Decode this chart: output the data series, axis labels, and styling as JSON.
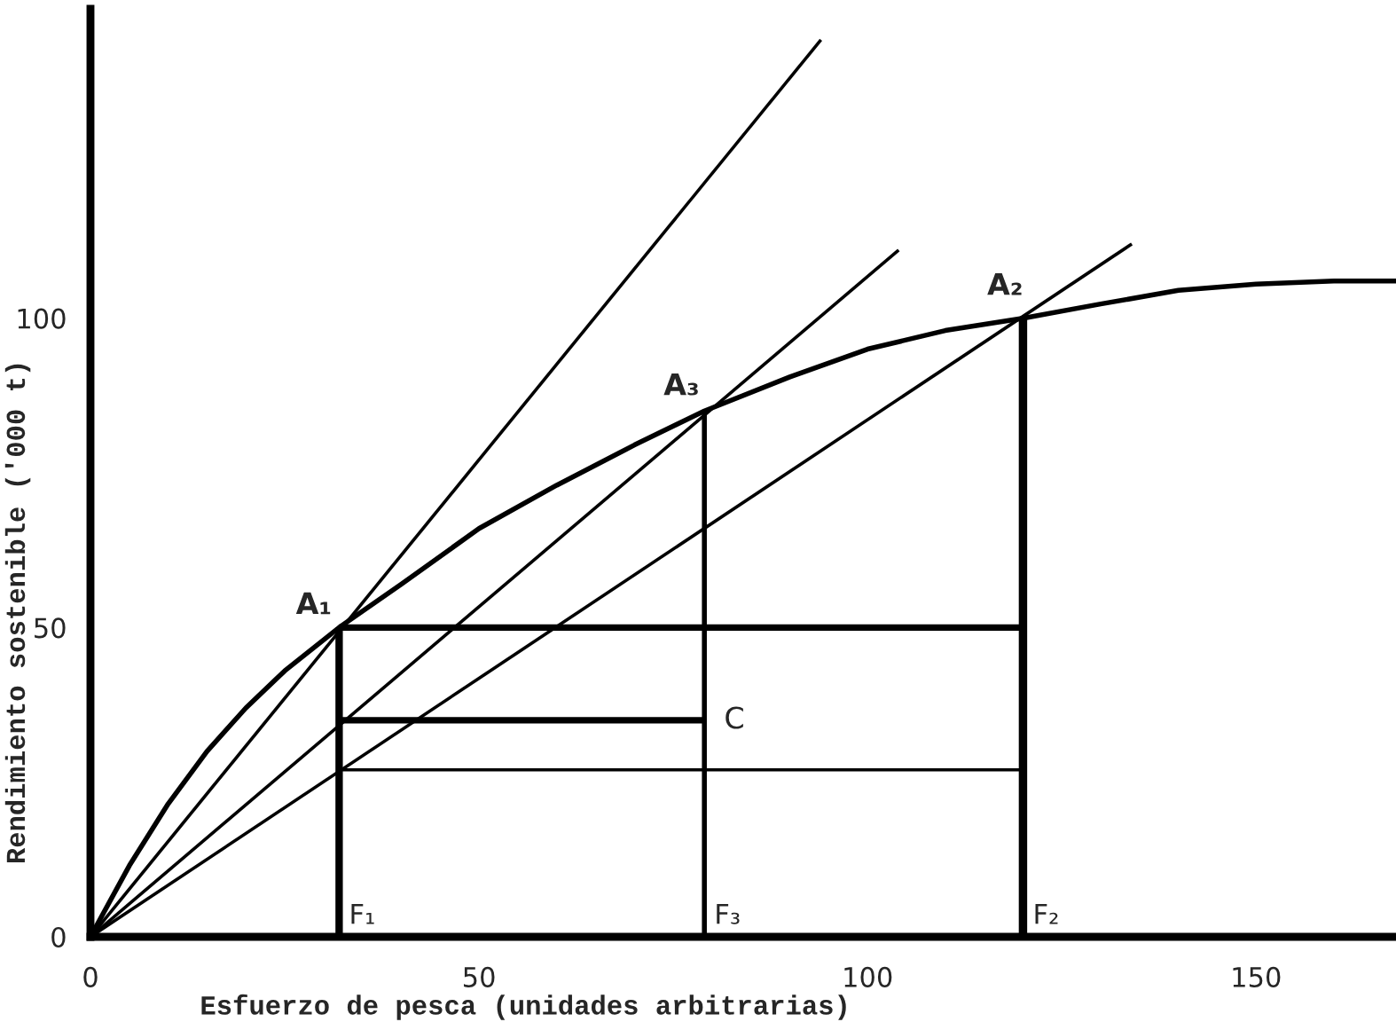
{
  "chart_data": {
    "type": "line",
    "xlabel": "Esfuerzo de pesca (unidades arbitrarias)",
    "ylabel": "Rendimiento sostenible ('000 t)",
    "xlim": [
      0,
      168
    ],
    "ylim": [
      0,
      150
    ],
    "xticks": [
      0,
      50,
      100,
      150
    ],
    "yticks": [
      0,
      50,
      100
    ],
    "series": [
      {
        "color": "#000000",
        "x": [
          0,
          5,
          10,
          15,
          20,
          25,
          32,
          40,
          50,
          60,
          70,
          79,
          90,
          100,
          110,
          120,
          130,
          140,
          150,
          160,
          168
        ],
        "values": [
          0,
          11.5,
          21.5,
          30,
          37,
          43,
          50,
          57,
          66,
          73,
          79.5,
          85,
          90.5,
          95,
          98,
          100,
          102.3,
          104.5,
          105.5,
          106,
          106
        ]
      },
      {
        "color": "#000000",
        "x": [
          0,
          94
        ],
        "values": [
          0,
          145
        ]
      },
      {
        "color": "#000000",
        "x": [
          0,
          104
        ],
        "values": [
          0,
          111
        ]
      },
      {
        "color": "#000000",
        "x": [
          0,
          134
        ],
        "values": [
          0,
          112
        ]
      },
      {
        "color": "#000000",
        "x": [
          32,
          120
        ],
        "values": [
          50,
          50
        ]
      },
      {
        "color": "#000000",
        "x": [
          32,
          79
        ],
        "values": [
          35,
          35
        ]
      },
      {
        "color": "#000000",
        "x": [
          32,
          120
        ],
        "values": [
          27,
          27
        ]
      },
      {
        "color": "#000000",
        "x": [
          32,
          32
        ],
        "values": [
          0,
          50
        ]
      },
      {
        "color": "#000000",
        "x": [
          79,
          79
        ],
        "values": [
          0,
          85
        ]
      },
      {
        "color": "#000000",
        "x": [
          120,
          120
        ],
        "values": [
          0,
          100
        ]
      }
    ],
    "annotations": [
      {
        "text": "A₁",
        "x": 32,
        "y": 50
      },
      {
        "text": "A₃",
        "x": 79,
        "y": 85
      },
      {
        "text": "A₂",
        "x": 120,
        "y": 100
      },
      {
        "text": "C",
        "x": 79,
        "y": 35
      },
      {
        "text": "F₁",
        "x": 32,
        "y": 0
      },
      {
        "text": "F₃",
        "x": 79,
        "y": 0
      },
      {
        "text": "F₂",
        "x": 120,
        "y": 0
      }
    ]
  }
}
